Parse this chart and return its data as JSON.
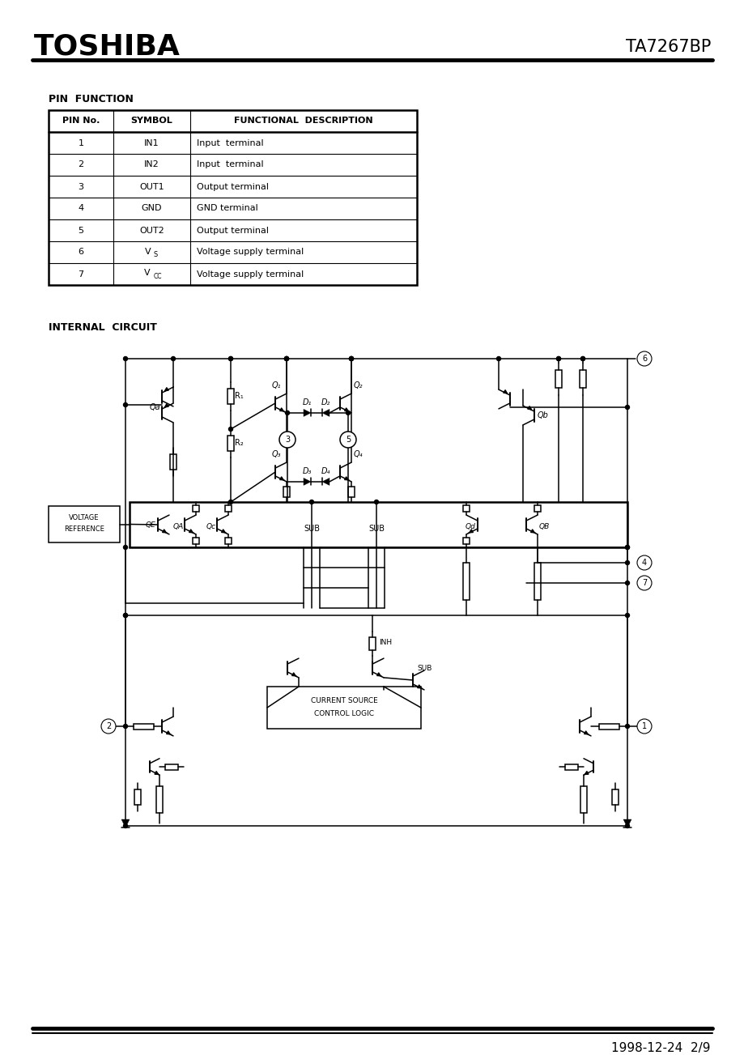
{
  "title_left": "TOSHIBA",
  "title_right": "TA7267BP",
  "section1_title": "PIN  FUNCTION",
  "table_headers": [
    "PIN No.",
    "SYMBOL",
    "FUNCTIONAL  DESCRIPTION"
  ],
  "table_rows": [
    [
      "1",
      "IN1",
      "Input  terminal"
    ],
    [
      "2",
      "IN2",
      "Input  terminal"
    ],
    [
      "3",
      "OUT1",
      "Output terminal"
    ],
    [
      "4",
      "GND",
      "GND terminal"
    ],
    [
      "5",
      "OUT2",
      "Output terminal"
    ],
    [
      "6",
      "VS",
      "Voltage supply terminal"
    ],
    [
      "7",
      "VCC",
      "Voltage supply terminal"
    ]
  ],
  "section2_title": "INTERNAL  CIRCUIT",
  "footer_text": "1998-12-24  2/9",
  "bg_color": "#ffffff"
}
